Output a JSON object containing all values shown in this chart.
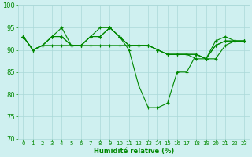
{
  "xlabel": "Humidité relative (%)",
  "ylabel": "",
  "xlim": [
    -0.5,
    23.5
  ],
  "ylim": [
    70,
    100
  ],
  "yticks": [
    70,
    75,
    80,
    85,
    90,
    95,
    100
  ],
  "xticks": [
    0,
    1,
    2,
    3,
    4,
    5,
    6,
    7,
    8,
    9,
    10,
    11,
    12,
    13,
    14,
    15,
    16,
    17,
    18,
    19,
    20,
    21,
    22,
    23
  ],
  "background_color": "#cff0f0",
  "grid_color": "#aad8d8",
  "line_color": "#008800",
  "series": [
    [
      93,
      90,
      91,
      93,
      95,
      91,
      91,
      93,
      95,
      95,
      93,
      90,
      82,
      77,
      77,
      78,
      85,
      85,
      89,
      88,
      92,
      93,
      92,
      92
    ],
    [
      93,
      90,
      91,
      93,
      93,
      91,
      91,
      93,
      93,
      95,
      93,
      91,
      91,
      91,
      90,
      89,
      89,
      89,
      89,
      88,
      91,
      92,
      92,
      92
    ],
    [
      93,
      90,
      91,
      93,
      93,
      91,
      91,
      93,
      93,
      95,
      93,
      91,
      91,
      91,
      90,
      89,
      89,
      89,
      89,
      88,
      91,
      92,
      92,
      92
    ],
    [
      93,
      90,
      91,
      91,
      91,
      91,
      91,
      91,
      91,
      91,
      91,
      91,
      91,
      91,
      90,
      89,
      89,
      89,
      88,
      88,
      88,
      91,
      92,
      92
    ]
  ]
}
